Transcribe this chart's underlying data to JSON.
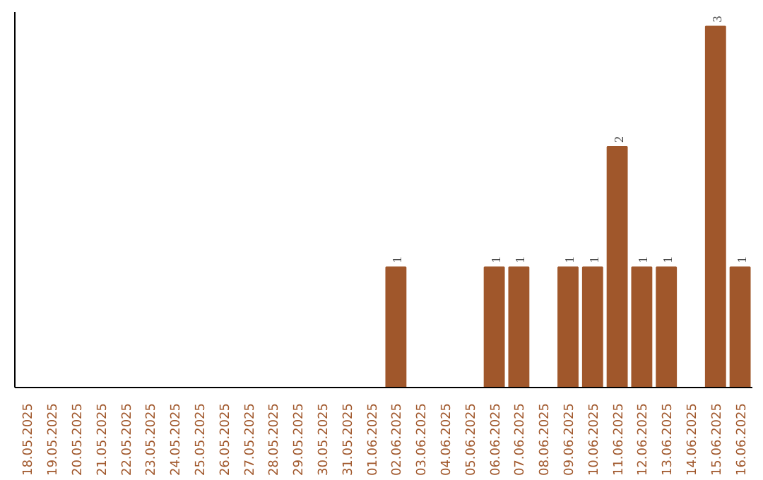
{
  "chart_data": {
    "type": "bar",
    "categories": [
      "18.05.2025",
      "19.05.2025",
      "20.05.2025",
      "21.05.2025",
      "22.05.2025",
      "23.05.2025",
      "24.05.2025",
      "25.05.2025",
      "26.05.2025",
      "27.05.2025",
      "28.05.2025",
      "29.05.2025",
      "30.05.2025",
      "31.05.2025",
      "01.06.2025",
      "02.06.2025",
      "03.06.2025",
      "04.06.2025",
      "05.06.2025",
      "06.06.2025",
      "07.06.2025",
      "08.06.2025",
      "09.06.2025",
      "10.06.2025",
      "11.06.2025",
      "12.06.2025",
      "13.06.2025",
      "14.06.2025",
      "15.06.2025",
      "16.06.2025"
    ],
    "values": [
      null,
      null,
      null,
      null,
      null,
      null,
      null,
      null,
      null,
      null,
      null,
      null,
      null,
      null,
      null,
      1,
      null,
      null,
      null,
      1,
      1,
      null,
      1,
      1,
      2,
      1,
      1,
      null,
      3,
      1
    ],
    "color": "#a0572b",
    "data_labels": true,
    "tick_labels": "x"
  }
}
